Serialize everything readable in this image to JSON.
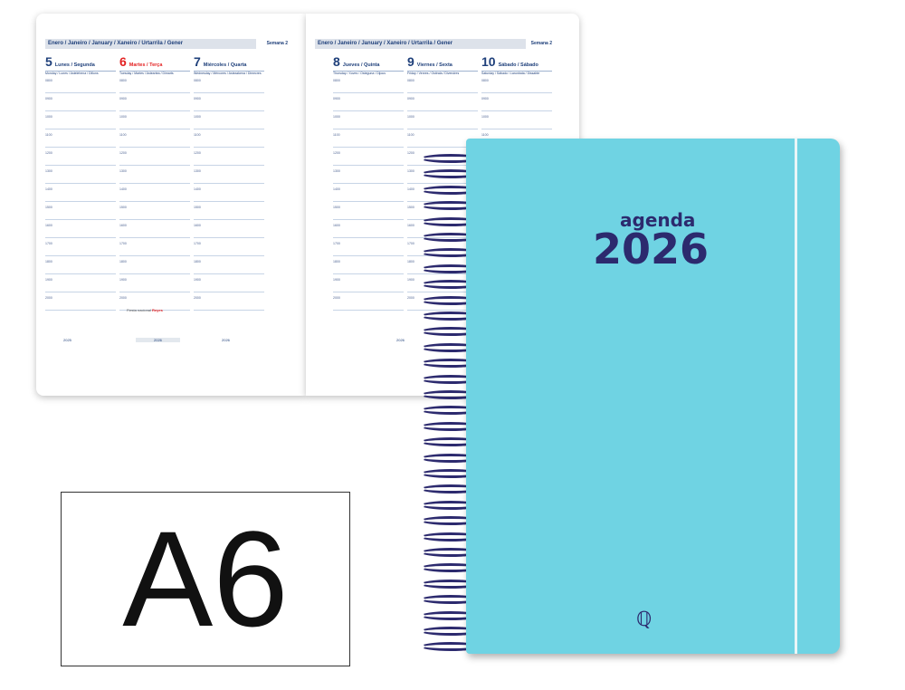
{
  "left_page": {
    "month": "Enero / Janeiro / January / Xaneiro / Urtarrila / Gener",
    "week": "Semana 2",
    "days": [
      {
        "num": "5",
        "name": "Lunes / Segunda",
        "sub": "Monday / Lunes / Astelehena / Dilluns",
        "holiday": false
      },
      {
        "num": "6",
        "name": "Martes / Terça",
        "sub": "Tuesday / Martes / Asteartea / Dimarts",
        "holiday": true
      },
      {
        "num": "7",
        "name": "Miércoles / Quarta",
        "sub": "Wednesday / Mércores / Asteazkena / Dimecres",
        "holiday": false
      }
    ],
    "note": "Fiesta nacional",
    "note_red": "Reyes",
    "mini": [
      "2025",
      "2026",
      "2026"
    ]
  },
  "right_page": {
    "month": "Enero / Janeiro / January / Xaneiro / Urtarrila / Gener",
    "week": "Semana 2",
    "days": [
      {
        "num": "8",
        "name": "Jueves / Quinta",
        "sub": "Thursday / Xoves / Osteguna / Dijous",
        "holiday": false
      },
      {
        "num": "9",
        "name": "Viernes / Sexta",
        "sub": "Friday / Venres / Ostirala / Divendres",
        "holiday": false
      },
      {
        "num": "10",
        "name": "Sábado / Sábado",
        "sub": "Saturday / Sábado / Larunbata / Dissabte",
        "holiday": false
      }
    ],
    "mini": [
      "2026"
    ]
  },
  "times": [
    "0800",
    "0900",
    "1000",
    "1100",
    "1200",
    "1300",
    "1400",
    "1500",
    "1600",
    "1700",
    "1800",
    "1900",
    "2000"
  ],
  "cover": {
    "label": "agenda",
    "year": "2026",
    "logo": "Q",
    "color": "#6fd3e3",
    "ink": "#2c2a6e"
  },
  "size_label": "A6"
}
